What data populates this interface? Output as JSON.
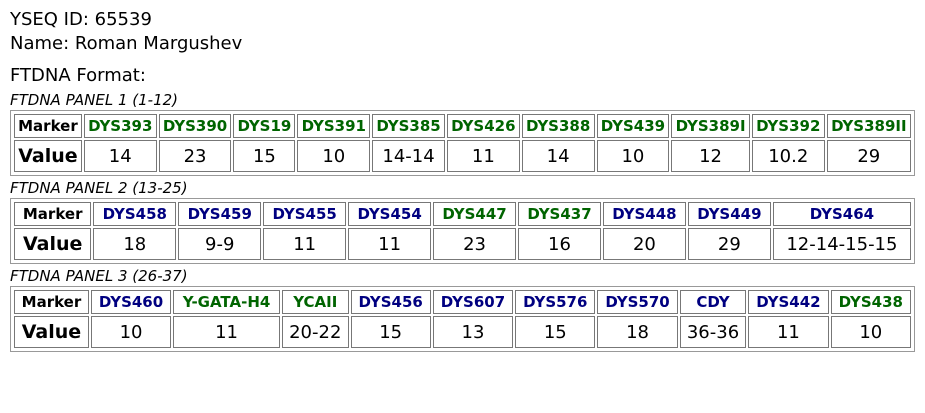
{
  "header": {
    "id_line": "YSEQ ID: 65539",
    "name_line": "Name: Roman Margushev",
    "format_line": "FTDNA Format:"
  },
  "row_labels": {
    "marker": "Marker",
    "value": "Value"
  },
  "panels": [
    {
      "title": "FTDNA PANEL 1 (1-12)",
      "markers": [
        {
          "name": "DYS393",
          "color": "#006400",
          "value": "14"
        },
        {
          "name": "DYS390",
          "color": "#006400",
          "value": "23"
        },
        {
          "name": "DYS19",
          "color": "#006400",
          "value": "15"
        },
        {
          "name": "DYS391",
          "color": "#006400",
          "value": "10"
        },
        {
          "name": "DYS385",
          "color": "#006400",
          "value": "14-14"
        },
        {
          "name": "DYS426",
          "color": "#006400",
          "value": "11"
        },
        {
          "name": "DYS388",
          "color": "#006400",
          "value": "14"
        },
        {
          "name": "DYS439",
          "color": "#006400",
          "value": "10"
        },
        {
          "name": "DYS389I",
          "color": "#006400",
          "value": "12"
        },
        {
          "name": "DYS392",
          "color": "#006400",
          "value": "10.2"
        },
        {
          "name": "DYS389II",
          "color": "#006400",
          "value": "29"
        }
      ]
    },
    {
      "title": "FTDNA PANEL 2 (13-25)",
      "markers": [
        {
          "name": "DYS458",
          "color": "#000080",
          "value": "18"
        },
        {
          "name": "DYS459",
          "color": "#000080",
          "value": "9-9"
        },
        {
          "name": "DYS455",
          "color": "#000080",
          "value": "11"
        },
        {
          "name": "DYS454",
          "color": "#000080",
          "value": "11"
        },
        {
          "name": "DYS447",
          "color": "#006400",
          "value": "23"
        },
        {
          "name": "DYS437",
          "color": "#006400",
          "value": "16"
        },
        {
          "name": "DYS448",
          "color": "#000080",
          "value": "20"
        },
        {
          "name": "DYS449",
          "color": "#000080",
          "value": "29"
        },
        {
          "name": "DYS464",
          "color": "#000080",
          "value": "12-14-15-15"
        }
      ]
    },
    {
      "title": "FTDNA PANEL 3 (26-37)",
      "markers": [
        {
          "name": "DYS460",
          "color": "#000080",
          "value": "10"
        },
        {
          "name": "Y-GATA-H4",
          "color": "#006400",
          "value": "11"
        },
        {
          "name": "YCAII",
          "color": "#006400",
          "value": "20-22"
        },
        {
          "name": "DYS456",
          "color": "#000080",
          "value": "15"
        },
        {
          "name": "DYS607",
          "color": "#000080",
          "value": "13"
        },
        {
          "name": "DYS576",
          "color": "#000080",
          "value": "15"
        },
        {
          "name": "DYS570",
          "color": "#000080",
          "value": "18"
        },
        {
          "name": "CDY",
          "color": "#000080",
          "value": "36-36"
        },
        {
          "name": "DYS442",
          "color": "#000080",
          "value": "11"
        },
        {
          "name": "DYS438",
          "color": "#006400",
          "value": "10"
        }
      ]
    }
  ]
}
